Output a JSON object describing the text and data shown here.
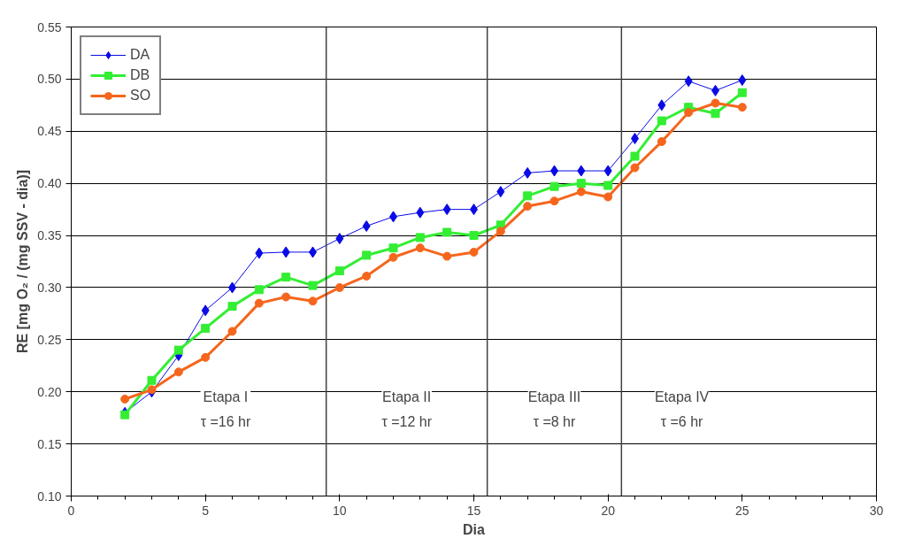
{
  "chart_data": {
    "type": "line",
    "xlabel": "Dia",
    "ylabel": "RE [mg O₂ / (mg SSV - dia)]",
    "x": [
      2,
      3,
      4,
      5,
      6,
      7,
      8,
      9,
      10,
      11,
      12,
      13,
      14,
      15,
      16,
      17,
      18,
      19,
      20,
      21,
      22,
      23,
      24,
      25
    ],
    "series": [
      {
        "name": "DA",
        "color": "#0a0ae6",
        "marker": "diamond",
        "values": [
          0.18,
          0.2,
          0.235,
          0.278,
          0.3,
          0.333,
          0.334,
          0.334,
          0.347,
          0.359,
          0.368,
          0.372,
          0.375,
          0.375,
          0.392,
          0.41,
          0.412,
          0.412,
          0.412,
          0.443,
          0.475,
          0.498,
          0.489,
          0.499
        ]
      },
      {
        "name": "DB",
        "color": "#33ee33",
        "marker": "square",
        "values": [
          0.178,
          0.211,
          0.24,
          0.261,
          0.282,
          0.298,
          0.31,
          0.302,
          0.316,
          0.331,
          0.338,
          0.348,
          0.353,
          0.35,
          0.36,
          0.388,
          0.397,
          0.4,
          0.398,
          0.426,
          0.46,
          0.473,
          0.467,
          0.487
        ]
      },
      {
        "name": "SO",
        "color": "#f5661c",
        "marker": "circle",
        "values": [
          0.193,
          0.202,
          0.219,
          0.233,
          0.258,
          0.285,
          0.291,
          0.287,
          0.3,
          0.311,
          0.329,
          0.338,
          0.33,
          0.334,
          0.354,
          0.378,
          0.383,
          0.392,
          0.387,
          0.415,
          0.44,
          0.468,
          0.477,
          0.473
        ]
      }
    ],
    "xlim": [
      0,
      30
    ],
    "xticks": [
      0,
      5,
      10,
      15,
      20,
      25,
      30
    ],
    "ylim": [
      0.1,
      0.55
    ],
    "yticks": [
      {
        "value": 0.1,
        "label": "0.10"
      },
      0.15,
      {
        "value": 0.2,
        "label": "0.20"
      },
      0.25,
      {
        "value": 0.3,
        "label": "0.30"
      },
      0.35,
      {
        "value": 0.4,
        "label": "0.40"
      },
      0.45,
      {
        "value": 0.5,
        "label": "0.50"
      },
      0.55
    ],
    "ref_lines": [
      {
        "axis": "x",
        "value": 9.5,
        "color": "#404040"
      },
      {
        "axis": "x",
        "value": 15.5,
        "color": "#404040"
      },
      {
        "axis": "x",
        "value": 20.5,
        "color": "#404040"
      }
    ],
    "annotations": [
      "Etapa I\nτ =16 hr",
      "Etapa II\nτ =12 hr",
      "Etapa III\nτ =8 hr",
      "Etapa IV\nτ =6 hr"
    ],
    "grid": "y",
    "legend": "top left",
    "line_style": "solid"
  }
}
